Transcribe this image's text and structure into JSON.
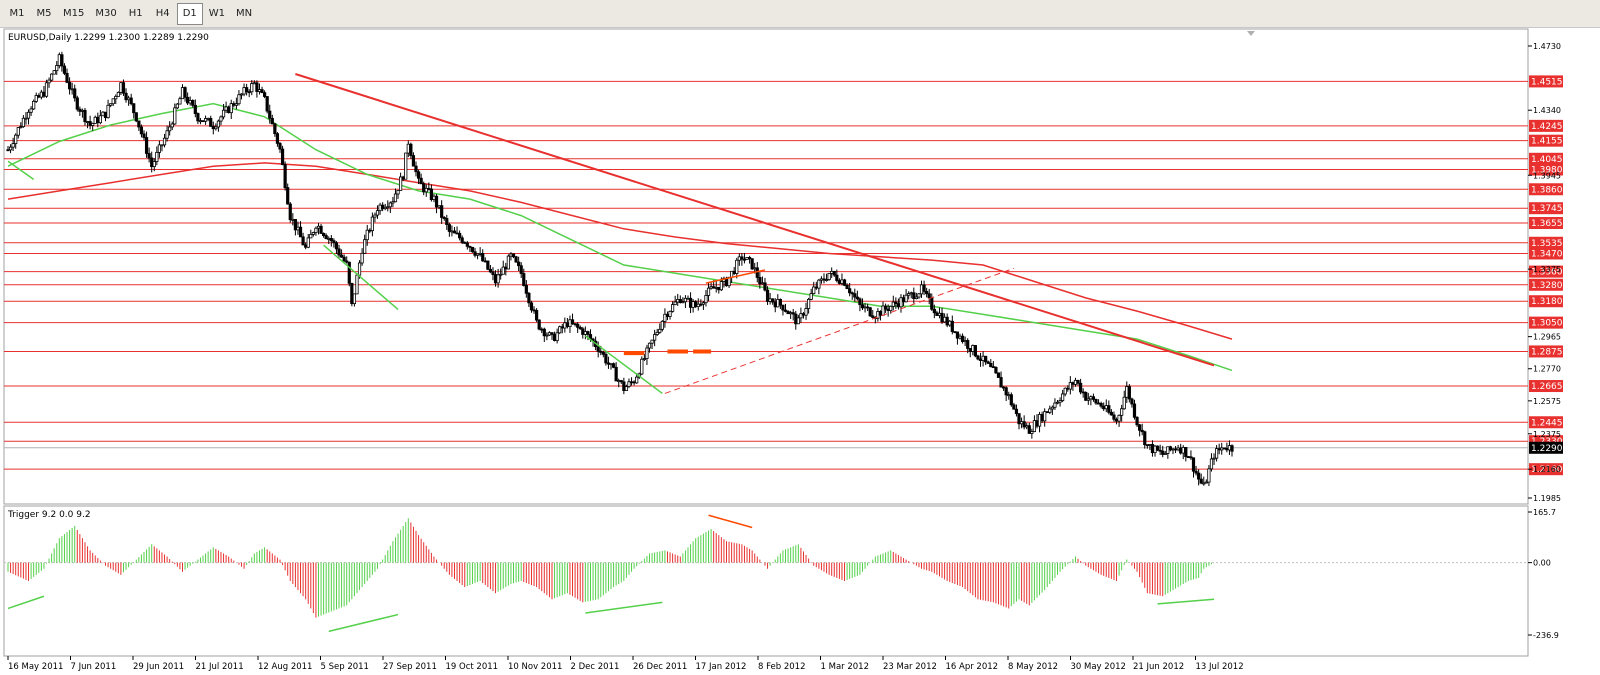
{
  "timeframes": [
    {
      "label": "M1",
      "active": false
    },
    {
      "label": "M5",
      "active": false
    },
    {
      "label": "M15",
      "active": false
    },
    {
      "label": "M30",
      "active": false
    },
    {
      "label": "H1",
      "active": false
    },
    {
      "label": "H4",
      "active": false
    },
    {
      "label": "D1",
      "active": true
    },
    {
      "label": "W1",
      "active": false
    },
    {
      "label": "MN",
      "active": false
    }
  ],
  "chart": {
    "symbol_label": "EURUSD,Daily  1.2299 1.2300 1.2289 1.2290",
    "current_price": "1.2290",
    "ylim": [
      1.1985,
      1.473
    ],
    "price_ticks": [
      "1.4730",
      "1.4340",
      "1.3945",
      "1.3375",
      "1.2965",
      "1.2770",
      "1.2575",
      "1.2375",
      "1.2160",
      "1.1985"
    ],
    "hlines": [
      {
        "price": 1.4515,
        "label": "1.4515"
      },
      {
        "price": 1.4245,
        "label": "1.4245"
      },
      {
        "price": 1.4155,
        "label": "1.4155"
      },
      {
        "price": 1.4045,
        "label": "1.4045"
      },
      {
        "price": 1.398,
        "label": "1.3980"
      },
      {
        "price": 1.386,
        "label": "1.3860"
      },
      {
        "price": 1.3745,
        "label": "1.3745"
      },
      {
        "price": 1.3655,
        "label": "1.3655"
      },
      {
        "price": 1.3535,
        "label": "1.3535"
      },
      {
        "price": 1.347,
        "label": "1.3470"
      },
      {
        "price": 1.336,
        "label": "1.3360"
      },
      {
        "price": 1.328,
        "label": "1.3280"
      },
      {
        "price": 1.318,
        "label": "1.3180"
      },
      {
        "price": 1.305,
        "label": "1.3050"
      },
      {
        "price": 1.2875,
        "label": "1.2875"
      },
      {
        "price": 1.2665,
        "label": "1.2665"
      },
      {
        "price": 1.2445,
        "label": "1.2445"
      },
      {
        "price": 1.233,
        "label": "1.2330"
      },
      {
        "price": 1.216,
        "label": "1.2160"
      }
    ],
    "date_labels": [
      "16 May 2011",
      "7 Jun 2011",
      "29 Jun 2011",
      "21 Jul 2011",
      "12 Aug 2011",
      "5 Sep 2011",
      "27 Sep 2011",
      "19 Oct 2011",
      "10 Nov 2011",
      "2 Dec 2011",
      "26 Dec 2011",
      "17 Jan 2012",
      "8 Feb 2012",
      "1 Mar 2012",
      "23 Mar 2012",
      "16 Apr 2012",
      "8 May 2012",
      "30 May 2012",
      "21 Jun 2012",
      "13 Jul 2012"
    ],
    "close_series": [
      [
        0,
        1.41
      ],
      [
        8,
        1.435
      ],
      [
        14,
        1.445
      ],
      [
        20,
        1.465
      ],
      [
        26,
        1.44
      ],
      [
        32,
        1.425
      ],
      [
        38,
        1.432
      ],
      [
        44,
        1.45
      ],
      [
        50,
        1.43
      ],
      [
        56,
        1.4
      ],
      [
        62,
        1.42
      ],
      [
        68,
        1.445
      ],
      [
        74,
        1.43
      ],
      [
        80,
        1.425
      ],
      [
        86,
        1.435
      ],
      [
        92,
        1.445
      ],
      [
        96,
        1.45
      ],
      [
        100,
        1.44
      ],
      [
        106,
        1.41
      ],
      [
        110,
        1.37
      ],
      [
        116,
        1.35
      ],
      [
        120,
        1.365
      ],
      [
        126,
        1.355
      ],
      [
        132,
        1.34
      ],
      [
        134,
        1.315
      ],
      [
        138,
        1.35
      ],
      [
        144,
        1.375
      ],
      [
        150,
        1.38
      ],
      [
        154,
        1.395
      ],
      [
        156,
        1.415
      ],
      [
        160,
        1.39
      ],
      [
        166,
        1.38
      ],
      [
        172,
        1.36
      ],
      [
        178,
        1.355
      ],
      [
        184,
        1.345
      ],
      [
        190,
        1.33
      ],
      [
        196,
        1.345
      ],
      [
        200,
        1.335
      ],
      [
        206,
        1.305
      ],
      [
        212,
        1.295
      ],
      [
        218,
        1.305
      ],
      [
        224,
        1.3
      ],
      [
        230,
        1.29
      ],
      [
        236,
        1.275
      ],
      [
        240,
        1.265
      ],
      [
        244,
        1.27
      ],
      [
        250,
        1.29
      ],
      [
        256,
        1.31
      ],
      [
        262,
        1.32
      ],
      [
        268,
        1.315
      ],
      [
        274,
        1.325
      ],
      [
        280,
        1.33
      ],
      [
        286,
        1.345
      ],
      [
        290,
        1.34
      ],
      [
        296,
        1.32
      ],
      [
        302,
        1.315
      ],
      [
        308,
        1.305
      ],
      [
        314,
        1.325
      ],
      [
        320,
        1.335
      ],
      [
        326,
        1.33
      ],
      [
        332,
        1.315
      ],
      [
        338,
        1.31
      ],
      [
        344,
        1.315
      ],
      [
        350,
        1.32
      ],
      [
        356,
        1.325
      ],
      [
        360,
        1.315
      ],
      [
        366,
        1.305
      ],
      [
        372,
        1.295
      ],
      [
        378,
        1.285
      ],
      [
        384,
        1.275
      ],
      [
        390,
        1.26
      ],
      [
        394,
        1.245
      ],
      [
        398,
        1.24
      ],
      [
        404,
        1.25
      ],
      [
        410,
        1.26
      ],
      [
        416,
        1.27
      ],
      [
        420,
        1.26
      ],
      [
        426,
        1.255
      ],
      [
        432,
        1.245
      ],
      [
        436,
        1.265
      ],
      [
        440,
        1.245
      ],
      [
        444,
        1.23
      ],
      [
        450,
        1.225
      ],
      [
        456,
        1.23
      ],
      [
        460,
        1.225
      ],
      [
        464,
        1.21
      ],
      [
        466,
        1.205
      ],
      [
        470,
        1.225
      ],
      [
        474,
        1.23
      ],
      [
        477,
        1.229
      ]
    ],
    "ema_green": [
      [
        0,
        1.4
      ],
      [
        20,
        1.415
      ],
      [
        40,
        1.425
      ],
      [
        60,
        1.432
      ],
      [
        80,
        1.438
      ],
      [
        100,
        1.43
      ],
      [
        120,
        1.41
      ],
      [
        140,
        1.395
      ],
      [
        160,
        1.385
      ],
      [
        180,
        1.38
      ],
      [
        200,
        1.37
      ],
      [
        220,
        1.355
      ],
      [
        240,
        1.34
      ],
      [
        260,
        1.335
      ],
      [
        280,
        1.33
      ],
      [
        300,
        1.325
      ],
      [
        320,
        1.32
      ],
      [
        340,
        1.315
      ],
      [
        360,
        1.315
      ],
      [
        380,
        1.31
      ],
      [
        400,
        1.305
      ],
      [
        420,
        1.3
      ],
      [
        440,
        1.295
      ],
      [
        460,
        1.285
      ],
      [
        477,
        1.276
      ]
    ],
    "ema_red": [
      [
        0,
        1.38
      ],
      [
        20,
        1.385
      ],
      [
        40,
        1.39
      ],
      [
        60,
        1.395
      ],
      [
        80,
        1.4
      ],
      [
        100,
        1.402
      ],
      [
        120,
        1.4
      ],
      [
        140,
        1.395
      ],
      [
        160,
        1.39
      ],
      [
        180,
        1.385
      ],
      [
        200,
        1.378
      ],
      [
        220,
        1.37
      ],
      [
        240,
        1.362
      ],
      [
        260,
        1.357
      ],
      [
        280,
        1.353
      ],
      [
        300,
        1.35
      ],
      [
        320,
        1.347
      ],
      [
        340,
        1.345
      ],
      [
        360,
        1.343
      ],
      [
        380,
        1.34
      ],
      [
        400,
        1.33
      ],
      [
        420,
        1.32
      ],
      [
        440,
        1.312
      ],
      [
        460,
        1.303
      ],
      [
        477,
        1.295
      ]
    ],
    "trendlines": [
      {
        "color": "#e8302e",
        "width": 2,
        "dash": false,
        "from": [
          112,
          1.456
        ],
        "to": [
          470,
          1.279
        ]
      },
      {
        "color": "#e8302e",
        "width": 1,
        "dash": true,
        "from": [
          256,
          1.262
        ],
        "to": [
          392,
          1.338
        ]
      },
      {
        "color": "#ff4a00",
        "width": 1.5,
        "dash": false,
        "from": [
          272,
          1.329
        ],
        "to": [
          295,
          1.337
        ]
      },
      {
        "color": "#54d04a",
        "width": 1.5,
        "dash": false,
        "from": [
          123,
          1.352
        ],
        "to": [
          152,
          1.313
        ]
      },
      {
        "color": "#54d04a",
        "width": 1.5,
        "dash": false,
        "from": [
          225,
          1.297
        ],
        "to": [
          255,
          1.262
        ]
      },
      {
        "color": "#54d04a",
        "width": 1.5,
        "dash": false,
        "from": [
          0,
          1.403
        ],
        "to": [
          10,
          1.392
        ]
      }
    ],
    "orange_marks": [
      {
        "from": [
          240,
          1.2865
        ],
        "to": [
          248,
          1.2865
        ]
      },
      {
        "from": [
          257,
          1.2875
        ],
        "to": [
          265,
          1.2875
        ]
      },
      {
        "from": [
          267,
          1.2875
        ],
        "to": [
          274,
          1.2875
        ]
      }
    ]
  },
  "indicator": {
    "label": "Trigger 9.2 0.0 9.2",
    "ticks": [
      "165.7",
      "0.00",
      "-236.9"
    ],
    "ylim": [
      -236.9,
      165.7
    ],
    "series": [
      [
        0,
        -30
      ],
      [
        8,
        -60
      ],
      [
        14,
        -20
      ],
      [
        20,
        80
      ],
      [
        26,
        120
      ],
      [
        32,
        40
      ],
      [
        38,
        -10
      ],
      [
        44,
        -40
      ],
      [
        50,
        10
      ],
      [
        56,
        60
      ],
      [
        62,
        20
      ],
      [
        68,
        -30
      ],
      [
        74,
        10
      ],
      [
        80,
        50
      ],
      [
        86,
        20
      ],
      [
        92,
        -20
      ],
      [
        96,
        30
      ],
      [
        100,
        50
      ],
      [
        106,
        10
      ],
      [
        110,
        -60
      ],
      [
        116,
        -120
      ],
      [
        120,
        -180
      ],
      [
        126,
        -160
      ],
      [
        132,
        -140
      ],
      [
        134,
        -120
      ],
      [
        138,
        -80
      ],
      [
        144,
        -20
      ],
      [
        150,
        70
      ],
      [
        154,
        120
      ],
      [
        156,
        145
      ],
      [
        160,
        90
      ],
      [
        166,
        20
      ],
      [
        172,
        -40
      ],
      [
        178,
        -80
      ],
      [
        184,
        -60
      ],
      [
        190,
        -100
      ],
      [
        196,
        -70
      ],
      [
        200,
        -60
      ],
      [
        206,
        -80
      ],
      [
        212,
        -120
      ],
      [
        218,
        -100
      ],
      [
        224,
        -130
      ],
      [
        230,
        -120
      ],
      [
        236,
        -80
      ],
      [
        240,
        -60
      ],
      [
        244,
        -20
      ],
      [
        250,
        30
      ],
      [
        256,
        40
      ],
      [
        262,
        20
      ],
      [
        268,
        80
      ],
      [
        274,
        110
      ],
      [
        280,
        70
      ],
      [
        286,
        60
      ],
      [
        290,
        40
      ],
      [
        296,
        -20
      ],
      [
        302,
        40
      ],
      [
        308,
        60
      ],
      [
        314,
        -10
      ],
      [
        320,
        -40
      ],
      [
        326,
        -60
      ],
      [
        332,
        -40
      ],
      [
        338,
        20
      ],
      [
        344,
        40
      ],
      [
        350,
        10
      ],
      [
        356,
        -20
      ],
      [
        360,
        -30
      ],
      [
        366,
        -60
      ],
      [
        372,
        -80
      ],
      [
        378,
        -120
      ],
      [
        384,
        -130
      ],
      [
        390,
        -150
      ],
      [
        394,
        -120
      ],
      [
        398,
        -140
      ],
      [
        404,
        -90
      ],
      [
        410,
        -30
      ],
      [
        416,
        20
      ],
      [
        420,
        -10
      ],
      [
        426,
        -40
      ],
      [
        432,
        -60
      ],
      [
        436,
        10
      ],
      [
        440,
        -30
      ],
      [
        444,
        -100
      ],
      [
        450,
        -110
      ],
      [
        456,
        -80
      ],
      [
        460,
        -60
      ],
      [
        464,
        -50
      ],
      [
        466,
        -20
      ],
      [
        470,
        0
      ],
      [
        474,
        0
      ],
      [
        477,
        0
      ]
    ],
    "divergences": [
      {
        "color": "#54d04a",
        "from": [
          0,
          -150
        ],
        "to": [
          14,
          -110
        ]
      },
      {
        "color": "#54d04a",
        "from": [
          125,
          -225
        ],
        "to": [
          152,
          -170
        ]
      },
      {
        "color": "#54d04a",
        "from": [
          225,
          -165
        ],
        "to": [
          255,
          -130
        ]
      },
      {
        "color": "#54d04a",
        "from": [
          448,
          -135
        ],
        "to": [
          470,
          -120
        ]
      },
      {
        "color": "#ff4a00",
        "from": [
          273,
          155
        ],
        "to": [
          290,
          115
        ]
      }
    ]
  },
  "colors": {
    "bull": "#54d04a",
    "bear": "#e8302e",
    "hline": "#e8302e",
    "label_bg": "#e8302e",
    "current_bg": "#000000",
    "chart_bg": "#ffffff",
    "grid": "#e0e0e0",
    "candle": "#000000"
  }
}
